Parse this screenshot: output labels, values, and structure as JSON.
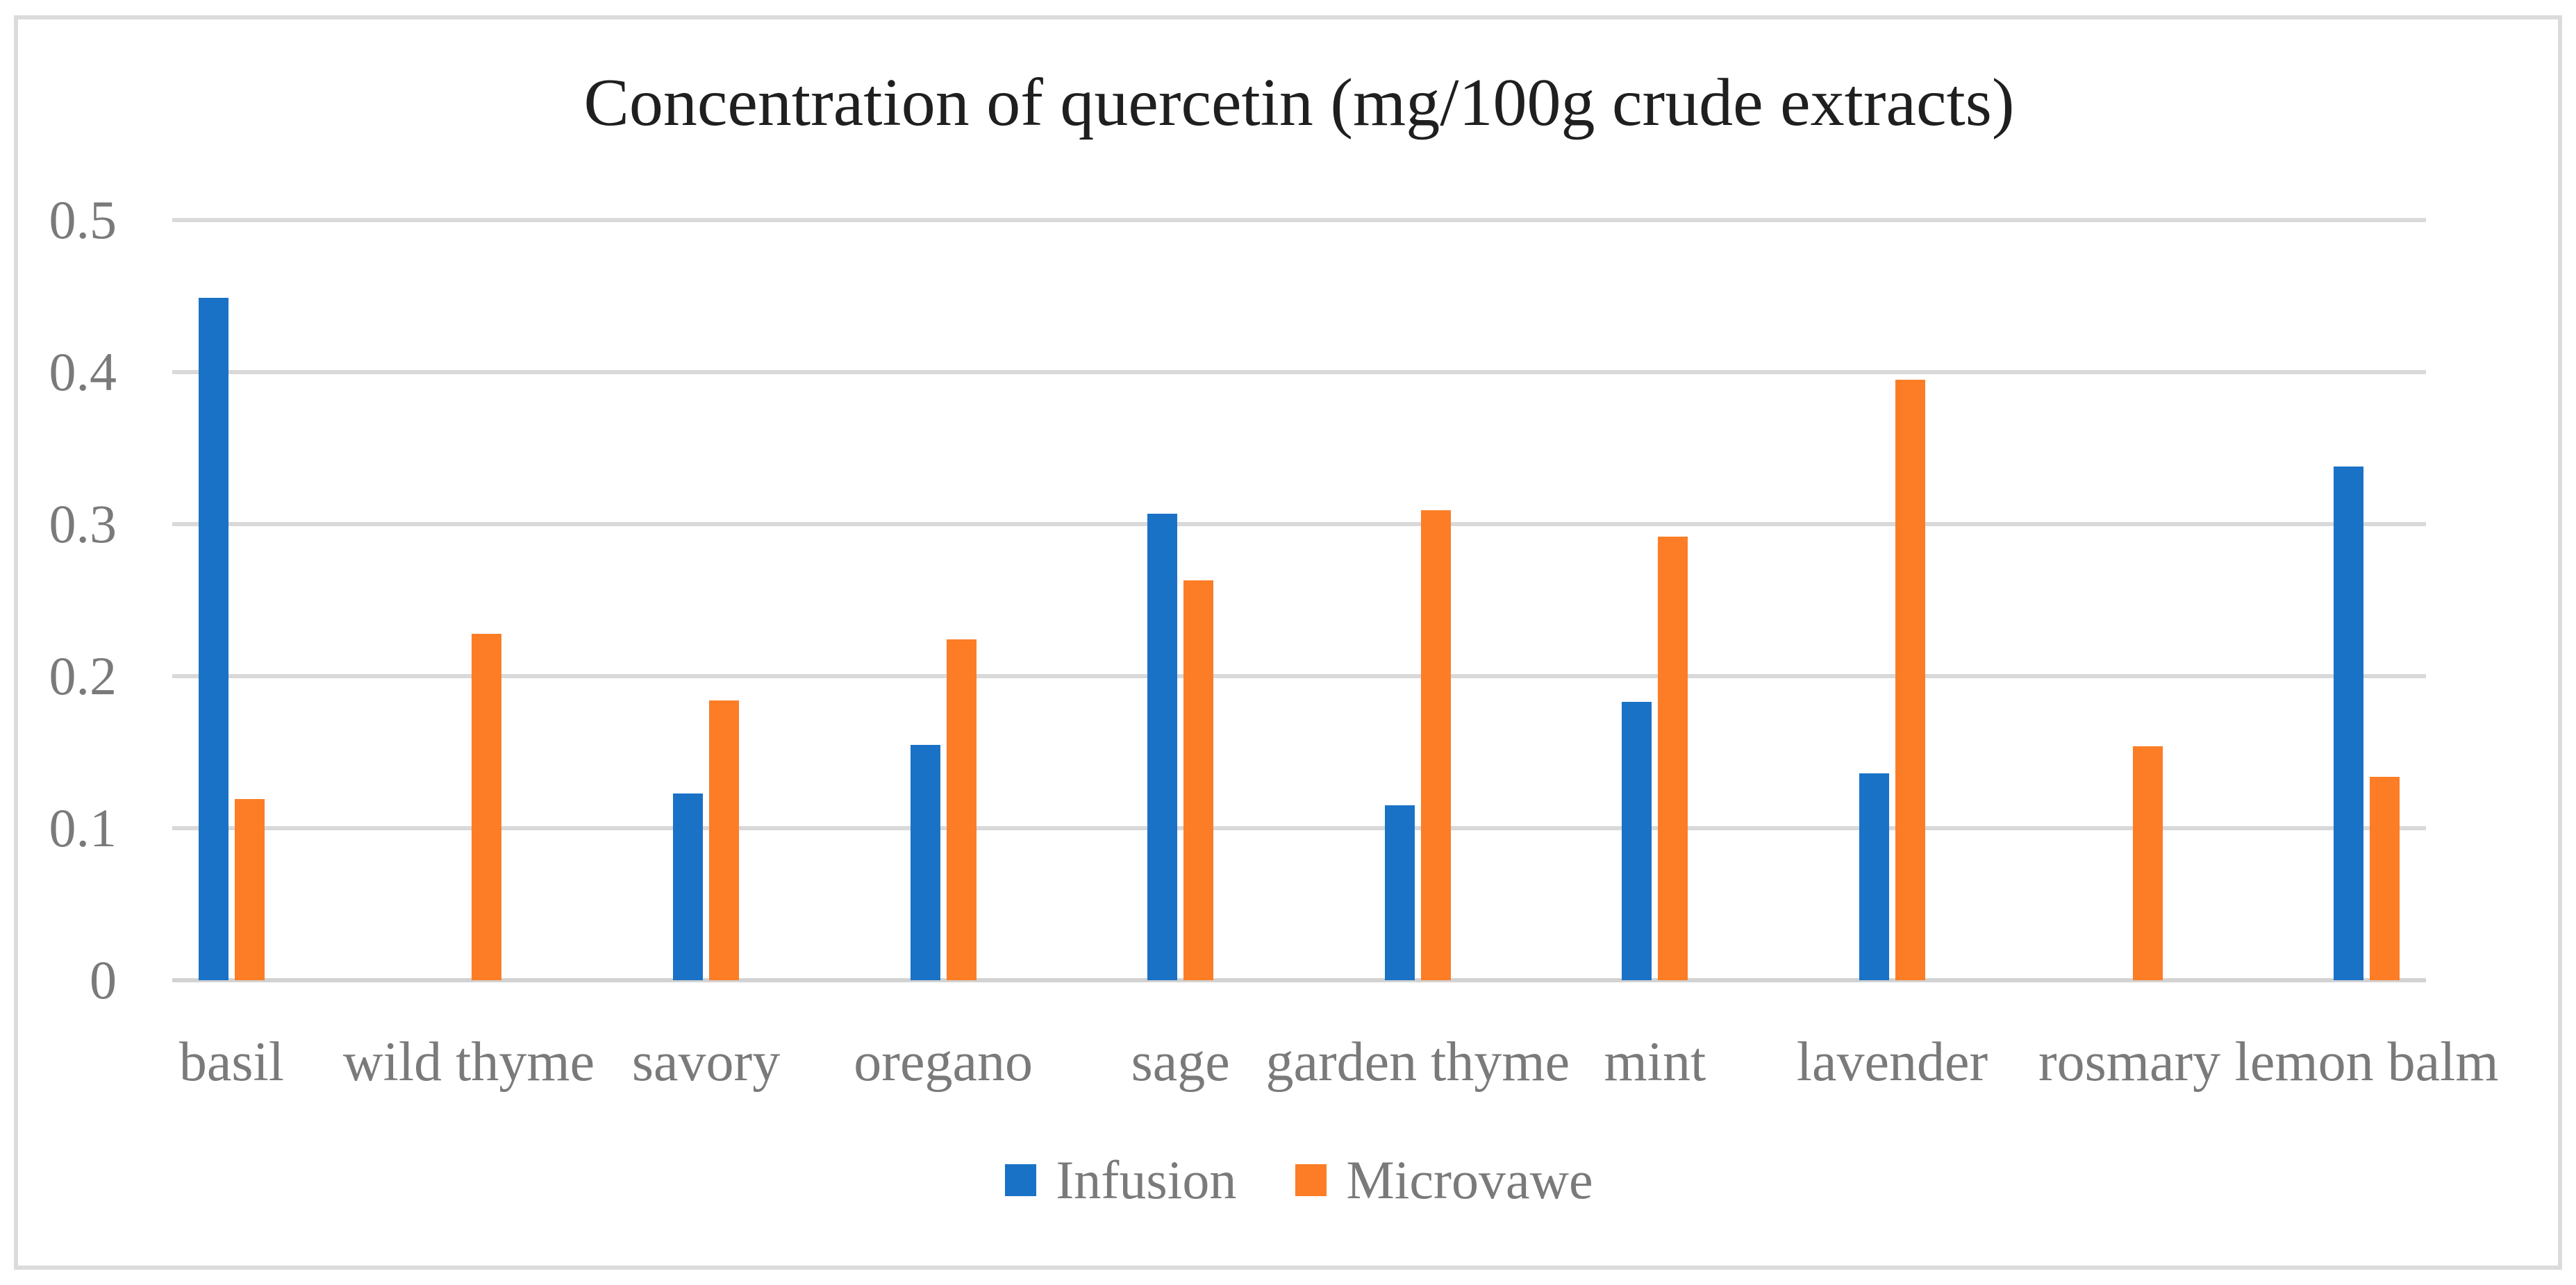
{
  "chart_data": {
    "type": "bar",
    "title": "Concentration of quercetin (mg/100g crude extracts)",
    "categories": [
      "basil",
      "wild thyme",
      "savory",
      "oregano",
      "sage",
      "garden thyme",
      "mint",
      "lavender",
      "rosmary",
      "lemon balm"
    ],
    "series": [
      {
        "name": "Infusion",
        "color": "#1A72C6",
        "values": [
          0.449,
          0,
          0.123,
          0.155,
          0.307,
          0.115,
          0.183,
          0.136,
          0,
          0.338
        ]
      },
      {
        "name": "Microvawe",
        "color": "#FC7D26",
        "values": [
          0.119,
          0.228,
          0.184,
          0.224,
          0.263,
          0.309,
          0.292,
          0.395,
          0.154,
          0.134
        ]
      }
    ],
    "xlabel": "",
    "ylabel": "",
    "ylim": [
      0,
      0.5
    ],
    "yticks": [
      {
        "value": 0.0,
        "label": "0"
      },
      {
        "value": 0.1,
        "label": "0.1"
      },
      {
        "value": 0.2,
        "label": "0.2"
      },
      {
        "value": 0.3,
        "label": "0.3"
      },
      {
        "value": 0.4,
        "label": "0.4"
      },
      {
        "value": 0.5,
        "label": "0.5"
      }
    ],
    "grid": true,
    "legend_position": "bottom"
  },
  "styles": {
    "infusion_color": "#1A72C6",
    "microvawe_color": "#FC7D26",
    "gridline_color": "#D9D9D9",
    "axis_line_color": "#D2D2D2",
    "tick_text_color": "#7A7A7A",
    "category_text_color": "#7A7A7A",
    "legend_text_color": "#7A7A7A",
    "title_color": "#1F1F1F",
    "frame_border_color": "#DBDBDB",
    "background_color": "#FFFFFF"
  }
}
